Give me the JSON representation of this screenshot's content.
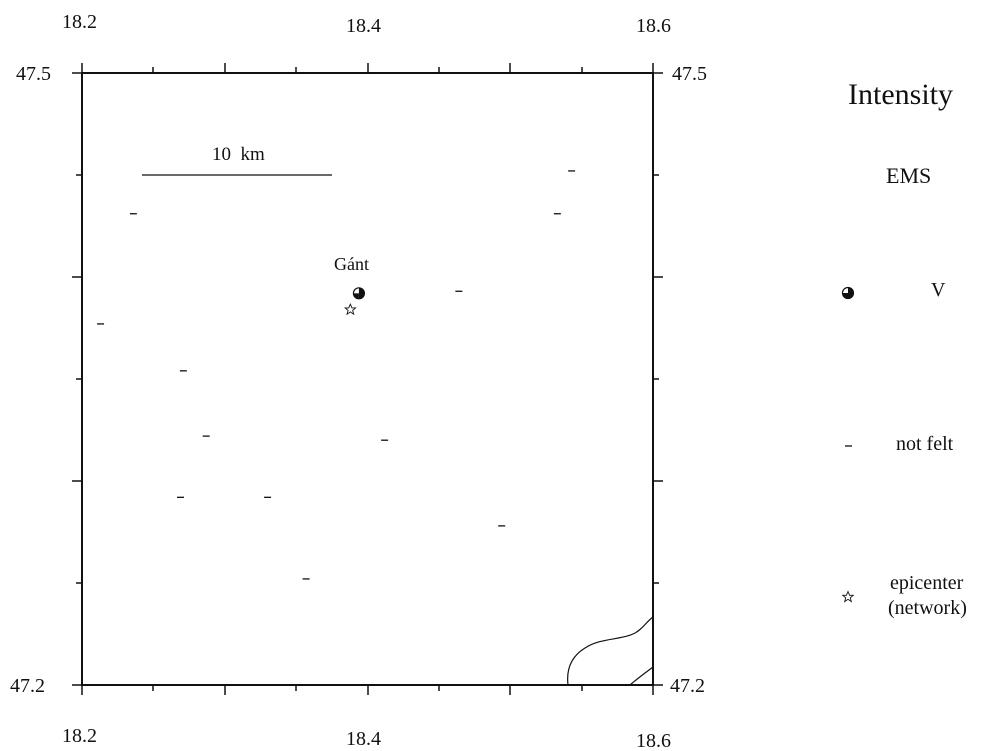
{
  "map": {
    "lon_ticks_top": [
      "18.2",
      "18.4",
      "18.6"
    ],
    "lon_ticks_bottom": [
      "18.2",
      "18.4",
      "18.6"
    ],
    "lat_ticks_left": [
      "47.5",
      "47.2"
    ],
    "lat_ticks_right": [
      "47.5",
      "47.2"
    ],
    "scale_label": "10  km",
    "place_label": "Gánt",
    "lon_range": [
      18.2,
      18.6
    ],
    "lat_range": [
      47.2,
      47.5
    ]
  },
  "legend": {
    "title": "Intensity",
    "subtitle": "EMS",
    "items": [
      {
        "symbol": "intensity-v-icon",
        "label": "V"
      },
      {
        "symbol": "not-felt-dash-icon",
        "label": "not felt"
      },
      {
        "symbol": "epicenter-star-icon",
        "label_line1": "epicenter",
        "label_line2": "(network)"
      }
    ]
  },
  "observations": {
    "intensity_v": [
      {
        "lon": 18.394,
        "lat": 47.392
      }
    ],
    "epicenter": [
      {
        "lon": 18.388,
        "lat": 47.384
      }
    ],
    "not_felt": [
      {
        "lon": 18.543,
        "lat": 47.452
      },
      {
        "lon": 18.236,
        "lat": 47.431
      },
      {
        "lon": 18.533,
        "lat": 47.431
      },
      {
        "lon": 18.464,
        "lat": 47.393
      },
      {
        "lon": 18.213,
        "lat": 47.377
      },
      {
        "lon": 18.271,
        "lat": 47.354
      },
      {
        "lon": 18.287,
        "lat": 47.322
      },
      {
        "lon": 18.412,
        "lat": 47.32
      },
      {
        "lon": 18.269,
        "lat": 47.292
      },
      {
        "lon": 18.33,
        "lat": 47.292
      },
      {
        "lon": 18.494,
        "lat": 47.278
      },
      {
        "lon": 18.357,
        "lat": 47.252
      }
    ]
  }
}
